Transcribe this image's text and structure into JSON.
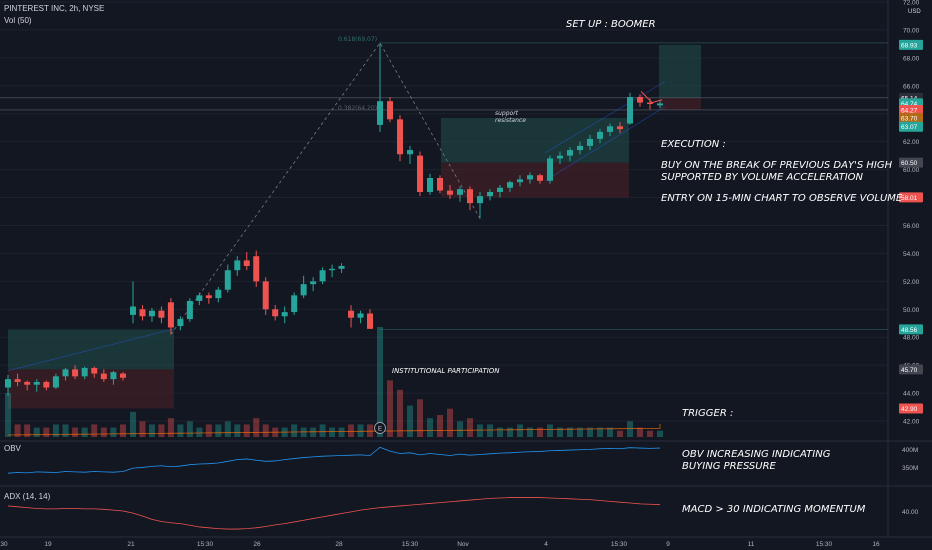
{
  "header": {
    "symbol_line": "PINTEREST INC, 2h, NYSE",
    "volume_label": "Vol (50)"
  },
  "currency": "USD",
  "annotations": {
    "setup": "SET UP : BOOMER",
    "execution_title": "EXECUTION :",
    "execution_line1": "BUY ON THE BREAK OF PREVIOUS DAY'S HIGH",
    "execution_line2": "SUPPORTED BY VOLUME ACCELERATION",
    "execution_line3": "ENTRY ON 15-MIN CHART TO OBSERVE VOLUME",
    "institutional": "INSTITUTIONAL PARTICIPATION",
    "trigger": "TRIGGER :",
    "obv_line1": "OBV INCREASING INDICATING",
    "obv_line2": "BUYING PRESSURE",
    "macd": "MACD > 30 INDICATING MOMENTUM",
    "support": "support",
    "resistance": "resistance",
    "fib_618": "0.618(69.07)",
    "fib_382": "0.382(64.20)",
    "volume_marker": "E"
  },
  "indicators": {
    "obv_label": "OBV",
    "adx_label": "ADX (14, 14)"
  },
  "colors": {
    "bg": "#131722",
    "up": "#26a69a",
    "down": "#ef5350",
    "grid": "#1e222d",
    "text": "#b2b5be",
    "accent_orange": "#f59e0b"
  },
  "chart_data": {
    "type": "candlestick",
    "title": "PINTEREST INC, 2h, NYSE",
    "price_axis": {
      "range": [
        40.5,
        72.0
      ],
      "ticks": [
        "72.00",
        "70.00",
        "68.00",
        "66.00",
        "64.00",
        "62.00",
        "60.00",
        "58.00",
        "56.00",
        "54.00",
        "52.00",
        "50.00",
        "48.00",
        "46.00",
        "44.00",
        "42.00"
      ]
    },
    "time_axis_labels": [
      "30",
      "19",
      "21",
      "15:30",
      "26",
      "28",
      "15:30",
      "Nov",
      "4",
      "15:30",
      "9",
      "11",
      "15:30",
      "16"
    ],
    "candles": [
      {
        "o": 44.4,
        "h": 45.3,
        "l": 43.8,
        "c": 45.0
      },
      {
        "o": 45.0,
        "h": 45.4,
        "l": 44.5,
        "c": 44.8
      },
      {
        "o": 44.8,
        "h": 44.9,
        "l": 44.2,
        "c": 44.6
      },
      {
        "o": 44.6,
        "h": 45.0,
        "l": 44.1,
        "c": 44.8
      },
      {
        "o": 44.8,
        "h": 44.9,
        "l": 44.2,
        "c": 44.4
      },
      {
        "o": 44.4,
        "h": 45.4,
        "l": 44.3,
        "c": 45.2
      },
      {
        "o": 45.2,
        "h": 45.8,
        "l": 44.9,
        "c": 45.7
      },
      {
        "o": 45.7,
        "h": 46.0,
        "l": 45.0,
        "c": 45.2
      },
      {
        "o": 45.2,
        "h": 45.9,
        "l": 45.0,
        "c": 45.8
      },
      {
        "o": 45.8,
        "h": 45.9,
        "l": 45.1,
        "c": 45.4
      },
      {
        "o": 45.4,
        "h": 45.7,
        "l": 44.8,
        "c": 45.0
      },
      {
        "o": 45.0,
        "h": 45.6,
        "l": 44.6,
        "c": 45.5
      },
      {
        "o": 45.4,
        "h": 45.5,
        "l": 44.9,
        "c": 45.1
      },
      {
        "o": 49.6,
        "h": 52.0,
        "l": 49.0,
        "c": 50.2
      },
      {
        "o": 50.0,
        "h": 50.3,
        "l": 49.2,
        "c": 49.5
      },
      {
        "o": 49.5,
        "h": 50.1,
        "l": 49.1,
        "c": 49.9
      },
      {
        "o": 49.9,
        "h": 50.2,
        "l": 49.0,
        "c": 49.4
      },
      {
        "o": 50.5,
        "h": 50.8,
        "l": 48.2,
        "c": 48.7
      },
      {
        "o": 48.8,
        "h": 49.5,
        "l": 48.5,
        "c": 49.3
      },
      {
        "o": 49.3,
        "h": 50.8,
        "l": 49.1,
        "c": 50.6
      },
      {
        "o": 50.6,
        "h": 51.2,
        "l": 50.3,
        "c": 51.0
      },
      {
        "o": 51.0,
        "h": 51.2,
        "l": 50.4,
        "c": 50.8
      },
      {
        "o": 50.8,
        "h": 51.6,
        "l": 50.5,
        "c": 51.4
      },
      {
        "o": 51.4,
        "h": 53.2,
        "l": 51.2,
        "c": 52.8
      },
      {
        "o": 52.8,
        "h": 53.8,
        "l": 52.4,
        "c": 53.5
      },
      {
        "o": 53.5,
        "h": 54.1,
        "l": 52.8,
        "c": 53.1
      },
      {
        "o": 53.8,
        "h": 54.2,
        "l": 51.6,
        "c": 52.0
      },
      {
        "o": 52.0,
        "h": 52.3,
        "l": 49.6,
        "c": 50.0
      },
      {
        "o": 50.0,
        "h": 50.3,
        "l": 49.2,
        "c": 49.5
      },
      {
        "o": 49.5,
        "h": 50.2,
        "l": 49.0,
        "c": 49.8
      },
      {
        "o": 49.8,
        "h": 51.2,
        "l": 49.6,
        "c": 51.0
      },
      {
        "o": 51.0,
        "h": 52.4,
        "l": 50.8,
        "c": 51.8
      },
      {
        "o": 51.8,
        "h": 52.3,
        "l": 51.3,
        "c": 52.0
      },
      {
        "o": 52.0,
        "h": 53.0,
        "l": 51.8,
        "c": 52.8
      },
      {
        "o": 52.8,
        "h": 53.2,
        "l": 52.3,
        "c": 52.9
      },
      {
        "o": 52.9,
        "h": 53.3,
        "l": 52.6,
        "c": 53.1
      },
      {
        "o": 49.9,
        "h": 50.3,
        "l": 48.7,
        "c": 49.4
      },
      {
        "o": 49.4,
        "h": 49.9,
        "l": 49.0,
        "c": 49.7
      },
      {
        "o": 49.7,
        "h": 50.0,
        "l": 48.6,
        "c": 48.6
      },
      {
        "o": 63.2,
        "h": 69.07,
        "l": 62.7,
        "c": 64.9
      },
      {
        "o": 64.9,
        "h": 65.2,
        "l": 63.4,
        "c": 63.6
      },
      {
        "o": 63.6,
        "h": 63.9,
        "l": 60.6,
        "c": 61.1
      },
      {
        "o": 61.1,
        "h": 61.7,
        "l": 60.4,
        "c": 61.4
      },
      {
        "o": 61.0,
        "h": 61.3,
        "l": 58.1,
        "c": 58.4
      },
      {
        "o": 58.4,
        "h": 59.7,
        "l": 58.2,
        "c": 59.4
      },
      {
        "o": 59.4,
        "h": 59.6,
        "l": 58.3,
        "c": 58.5
      },
      {
        "o": 58.5,
        "h": 58.9,
        "l": 57.9,
        "c": 58.2
      },
      {
        "o": 58.2,
        "h": 58.8,
        "l": 57.7,
        "c": 58.6
      },
      {
        "o": 58.6,
        "h": 58.8,
        "l": 57.1,
        "c": 57.6
      },
      {
        "o": 57.6,
        "h": 58.4,
        "l": 56.5,
        "c": 58.1
      },
      {
        "o": 58.1,
        "h": 58.6,
        "l": 57.8,
        "c": 58.4
      },
      {
        "o": 58.4,
        "h": 58.9,
        "l": 58.0,
        "c": 58.7
      },
      {
        "o": 58.7,
        "h": 59.2,
        "l": 58.4,
        "c": 59.1
      },
      {
        "o": 59.1,
        "h": 59.6,
        "l": 58.8,
        "c": 59.3
      },
      {
        "o": 59.3,
        "h": 59.8,
        "l": 59.0,
        "c": 59.6
      },
      {
        "o": 59.6,
        "h": 59.7,
        "l": 59.0,
        "c": 59.2
      },
      {
        "o": 59.2,
        "h": 61.0,
        "l": 59.0,
        "c": 60.8
      },
      {
        "o": 60.8,
        "h": 61.3,
        "l": 60.4,
        "c": 61.0
      },
      {
        "o": 61.0,
        "h": 61.6,
        "l": 60.6,
        "c": 61.4
      },
      {
        "o": 61.4,
        "h": 62.0,
        "l": 61.1,
        "c": 61.7
      },
      {
        "o": 61.7,
        "h": 62.5,
        "l": 61.4,
        "c": 62.2
      },
      {
        "o": 62.2,
        "h": 62.9,
        "l": 61.9,
        "c": 62.7
      },
      {
        "o": 62.7,
        "h": 63.3,
        "l": 62.4,
        "c": 63.1
      },
      {
        "o": 63.1,
        "h": 63.4,
        "l": 62.6,
        "c": 62.9
      },
      {
        "o": 63.3,
        "h": 65.5,
        "l": 63.2,
        "c": 65.2
      },
      {
        "o": 65.2,
        "h": 65.4,
        "l": 64.5,
        "c": 64.8
      },
      {
        "o": 64.8,
        "h": 65.1,
        "l": 64.3,
        "c": 64.7
      },
      {
        "o": 64.6,
        "h": 64.9,
        "l": 64.4,
        "c": 64.74
      }
    ],
    "volume": [
      14,
      4,
      4,
      3,
      3,
      4,
      4,
      3,
      3,
      4,
      3,
      3,
      4,
      8,
      5,
      4,
      4,
      6,
      4,
      5,
      3,
      4,
      4,
      5,
      4,
      4,
      6,
      4,
      3,
      3,
      4,
      3,
      3,
      4,
      3,
      3,
      4,
      4,
      4,
      35,
      18,
      15,
      10,
      12,
      6,
      7,
      9,
      5,
      6,
      4,
      4,
      3,
      3,
      4,
      3,
      3,
      4,
      3,
      3,
      3,
      3,
      3,
      3,
      2,
      5,
      3,
      2,
      2
    ],
    "price_labels": [
      {
        "value": 68.93,
        "text": "68.93",
        "color": "#26a69a"
      },
      {
        "value": 65.14,
        "text": "65.14",
        "color": "#2a2e39"
      },
      {
        "value": 64.74,
        "text": "64.74",
        "color": "#26a69a"
      },
      {
        "value": 64.27,
        "text": "64.27",
        "color": "#ef5350"
      },
      {
        "value": 63.7,
        "text": "63.70",
        "color": "#b26a17"
      },
      {
        "value": 63.07,
        "text": "63.07",
        "color": "#26a69a"
      },
      {
        "value": 60.5,
        "text": "60.50",
        "color": "#434651"
      },
      {
        "value": 58.01,
        "text": "58.01",
        "color": "#ef5350"
      },
      {
        "value": 48.56,
        "text": "48.56",
        "color": "#26a69a"
      },
      {
        "value": 45.7,
        "text": "45.70",
        "color": "#434651"
      },
      {
        "value": 42.9,
        "text": "42.90",
        "color": "#ef5350"
      }
    ],
    "obv": {
      "ticks": [
        "400M",
        "350M"
      ],
      "values": [
        0.2,
        0.22,
        0.21,
        0.24,
        0.23,
        0.22,
        0.25,
        0.24,
        0.23,
        0.25,
        0.24,
        0.23,
        0.25,
        0.35,
        0.37,
        0.4,
        0.42,
        0.39,
        0.41,
        0.45,
        0.47,
        0.48,
        0.5,
        0.55,
        0.6,
        0.62,
        0.58,
        0.55,
        0.56,
        0.6,
        0.63,
        0.66,
        0.68,
        0.7,
        0.71,
        0.72,
        0.73,
        0.74,
        0.72,
        0.96,
        0.85,
        0.78,
        0.8,
        0.74,
        0.78,
        0.75,
        0.72,
        0.76,
        0.73,
        0.75,
        0.77,
        0.79,
        0.8,
        0.82,
        0.83,
        0.84,
        0.86,
        0.87,
        0.88,
        0.89,
        0.9,
        0.92,
        0.93,
        0.92,
        0.95,
        0.94,
        0.93,
        0.94
      ]
    },
    "adx": {
      "ticks": [
        "40.00"
      ],
      "values": [
        0.62,
        0.6,
        0.58,
        0.56,
        0.55,
        0.55,
        0.56,
        0.56,
        0.55,
        0.55,
        0.54,
        0.52,
        0.5,
        0.45,
        0.38,
        0.3,
        0.25,
        0.22,
        0.2,
        0.16,
        0.12,
        0.1,
        0.08,
        0.07,
        0.07,
        0.08,
        0.1,
        0.13,
        0.17,
        0.2,
        0.24,
        0.28,
        0.32,
        0.36,
        0.4,
        0.44,
        0.48,
        0.52,
        0.55,
        0.58,
        0.6,
        0.62,
        0.64,
        0.66,
        0.68,
        0.7,
        0.72,
        0.74,
        0.76,
        0.78,
        0.8,
        0.81,
        0.82,
        0.82,
        0.82,
        0.82,
        0.81,
        0.8,
        0.79,
        0.78,
        0.77,
        0.75,
        0.73,
        0.71,
        0.69,
        0.67,
        0.66,
        0.65
      ]
    }
  }
}
